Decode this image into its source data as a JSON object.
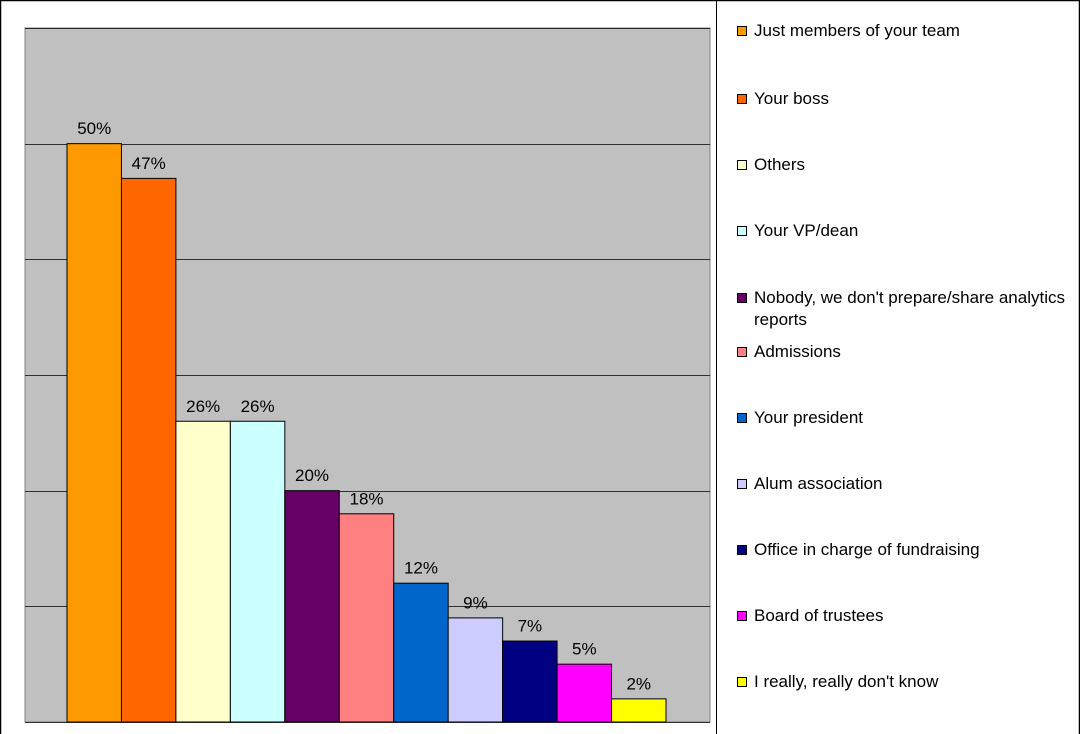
{
  "chart_data": {
    "type": "bar",
    "categories": [
      "Just members of your team",
      "Your boss",
      "Others",
      "Your VP/dean",
      "Nobody, we don't prepare/share analytics reports",
      "Admissions",
      "Your president",
      "Alum association",
      "Office in charge of fundraising",
      "Board of trustees",
      "I really, really don't know"
    ],
    "values": [
      50,
      47,
      26,
      26,
      20,
      18,
      12,
      9,
      7,
      5,
      2
    ],
    "value_labels": [
      "50%",
      "47%",
      "26%",
      "26%",
      "20%",
      "18%",
      "12%",
      "9%",
      "7%",
      "5%",
      "2%"
    ],
    "colors": [
      "#ff9900",
      "#ff6600",
      "#ffffcc",
      "#ccffff",
      "#660066",
      "#ff8080",
      "#0066cc",
      "#ccccff",
      "#000080",
      "#ff00ff",
      "#ffff00"
    ],
    "ylim": [
      0,
      60
    ],
    "yticks": [
      0,
      10,
      20,
      30,
      40,
      50,
      60
    ],
    "grid": true,
    "legend": "right"
  }
}
